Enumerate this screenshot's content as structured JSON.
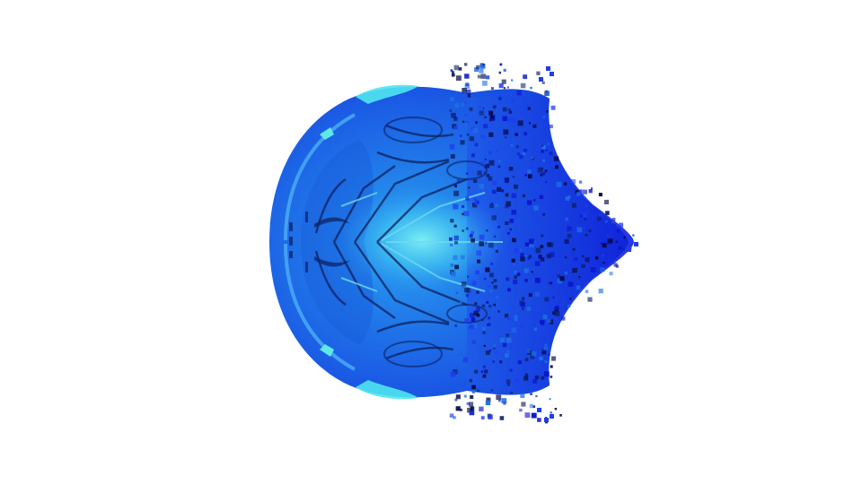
{
  "scene": {
    "background_color": "#ffffff",
    "subject": "volumetric-blob-render",
    "colors": {
      "deep_blue": "#0a14c8",
      "royal_blue": "#1e3cf0",
      "mid_blue": "#1f6fe6",
      "bright_blue": "#2a8cf2",
      "light_blue": "#4fb4f5",
      "cyan": "#4fe6f0",
      "navy_shadow": "#0b1f5e",
      "dark_speck": "#070a4a"
    }
  }
}
